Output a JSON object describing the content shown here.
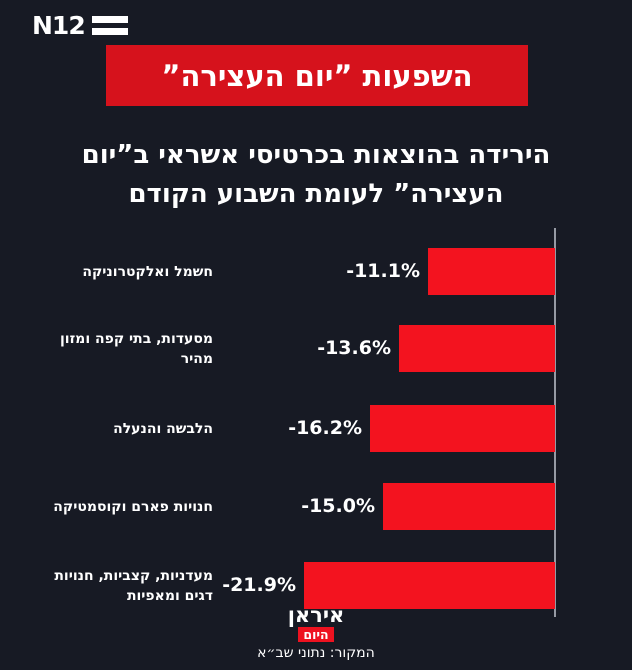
{
  "header": {
    "logo_text": "N12",
    "banner_title": "השפעות ”יום העצירה”",
    "headline_line1": "הירידה בהוצאות בכרטיסי אשראי ב”יום",
    "headline_line2": "העצירה” לעומת השבוע הקודם"
  },
  "chart_data": {
    "type": "bar",
    "orientation": "horizontal-rtl",
    "title": "הירידה בהוצאות בכרטיסי אשראי ב”יום העצירה” לעומת השבוע הקודם",
    "categories": [
      "חשמל ואלקטרוניקה",
      "מסעדות, בתי קפה ומזון מהיר",
      "הלבשה והנעלה",
      "חנויות פארם וקוסמטיקה",
      "מעדניות, קצביות, חנויות דגים ומאפיות"
    ],
    "category_lines": [
      [
        "חשמל ואלקטרוניקה"
      ],
      [
        "מסעדות, בתי קפה ומזון",
        "מהיר"
      ],
      [
        "הלבשה והנעלה"
      ],
      [
        "חנויות פארם וקוסמטיקה"
      ],
      [
        "מעדניות, קצביות, חנויות",
        "דגים ומאפיות"
      ]
    ],
    "values": [
      -11.1,
      -13.6,
      -16.2,
      -15.0,
      -21.9
    ],
    "value_labels": [
      "-11.1%",
      "-13.6%",
      "-16.2%",
      "-15.0%",
      "-21.9%"
    ],
    "unit": "%",
    "xlim": [
      0,
      -25
    ],
    "grid": false,
    "legend": "none",
    "bar_color": "#f3131f",
    "axis_color": "#969aa4"
  },
  "footer": {
    "brand_line1": "איראן",
    "brand_line2": "היום",
    "source": "המקור: נתוני שב״א"
  },
  "colors": {
    "background": "#171a24",
    "banner_red": "#d6121c",
    "bar_red": "#f3131f",
    "badge_red": "#ee1220",
    "text": "#ffffff"
  }
}
